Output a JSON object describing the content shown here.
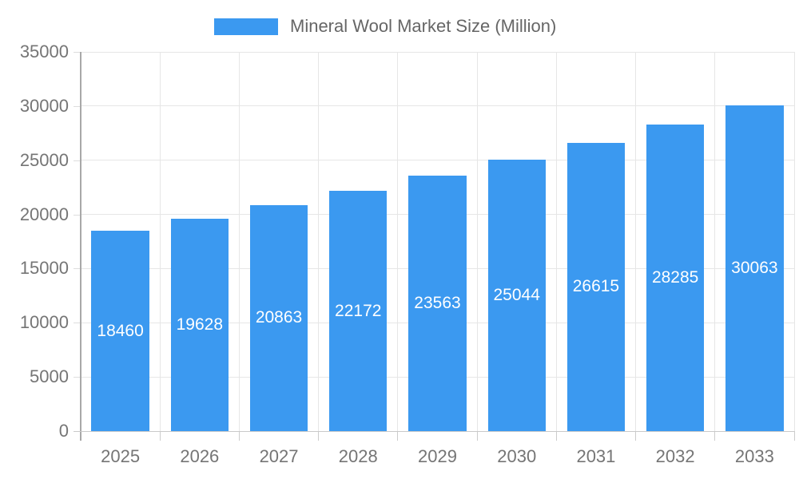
{
  "legend": {
    "label": "Mineral Wool Market Size (Million)",
    "swatch_color": "#3b99f0"
  },
  "chart_data": {
    "type": "bar",
    "title": "Mineral Wool Market Size (Million)",
    "series_name": "Mineral Wool Market Size (Million)",
    "categories": [
      "2025",
      "2026",
      "2027",
      "2028",
      "2029",
      "2030",
      "2031",
      "2032",
      "2033"
    ],
    "values": [
      18460,
      19628,
      20863,
      22172,
      23563,
      25044,
      26615,
      28285,
      30063
    ],
    "xlabel": "",
    "ylabel": "",
    "ylim": [
      0,
      35000
    ],
    "ytick_step": 5000,
    "yticks": [
      0,
      5000,
      10000,
      15000,
      20000,
      25000,
      30000,
      35000
    ],
    "grid": true,
    "legend_position": "top",
    "bar_labels_visible": true,
    "colors": {
      "bar": "#3b99f0",
      "bar_label_text": "#ffffff",
      "axis_text": "#757575",
      "legend_text": "#666666",
      "gridline": "#e6e6e6",
      "y_axis_line": "#a8a8a8",
      "x_axis_line": "#c9c9c9",
      "background": "#ffffff"
    }
  }
}
